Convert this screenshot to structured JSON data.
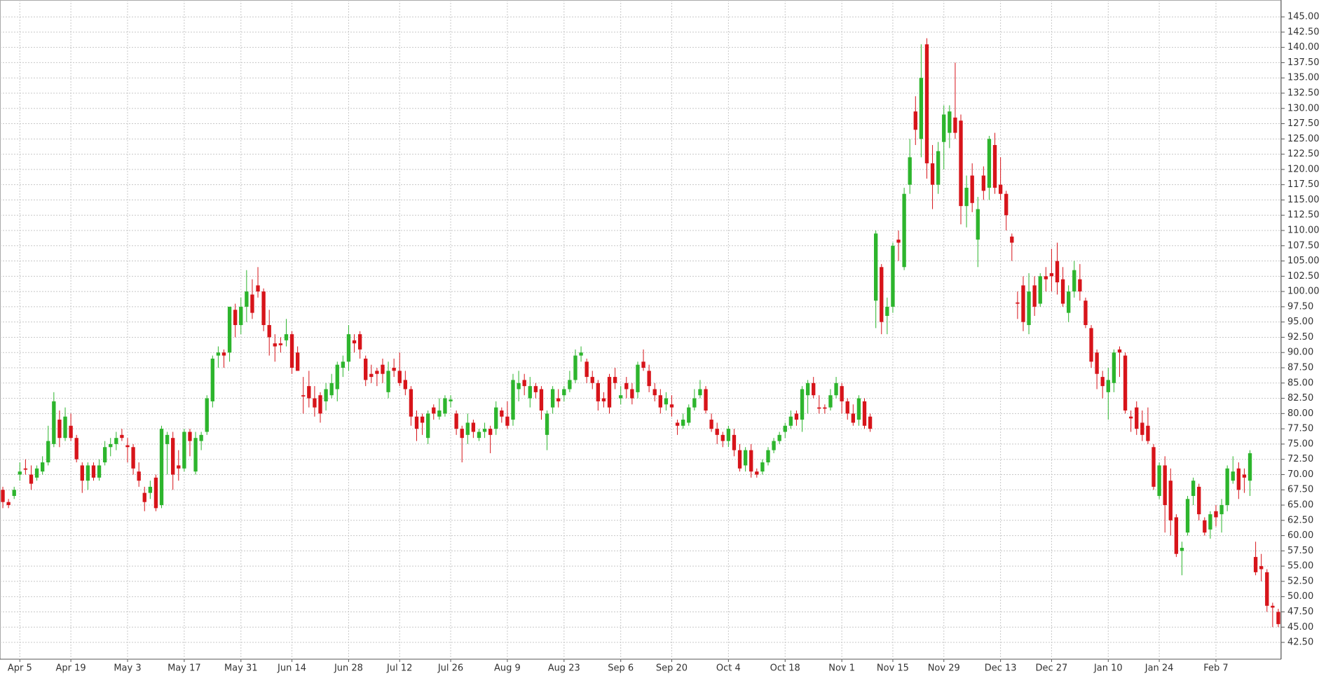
{
  "chart_data": {
    "type": "candlestick",
    "grid": true,
    "up_color": "#2db52d",
    "down_color": "#d7141a",
    "ylim": [
      39.75,
      147.5
    ],
    "yticks": [
      {
        "value": 42.5,
        "label": "42.50"
      },
      {
        "value": 45,
        "label": "45.00"
      },
      {
        "value": 47.5,
        "label": "47.50"
      },
      {
        "value": 50,
        "label": "50.00"
      },
      {
        "value": 52.5,
        "label": "52.50"
      },
      {
        "value": 55,
        "label": "55.00"
      },
      {
        "value": 57.5,
        "label": "57.50"
      },
      {
        "value": 60,
        "label": "60.00"
      },
      {
        "value": 62.5,
        "label": "62.50"
      },
      {
        "value": 65,
        "label": "65.00"
      },
      {
        "value": 67.5,
        "label": "67.50"
      },
      {
        "value": 70,
        "label": "70.00"
      },
      {
        "value": 72.5,
        "label": "72.50"
      },
      {
        "value": 75,
        "label": "75.00"
      },
      {
        "value": 77.5,
        "label": "77.50"
      },
      {
        "value": 80,
        "label": "80.00"
      },
      {
        "value": 82.5,
        "label": "82.50"
      },
      {
        "value": 85,
        "label": "85.00"
      },
      {
        "value": 87.5,
        "label": "87.50"
      },
      {
        "value": 90,
        "label": "90.00"
      },
      {
        "value": 92.5,
        "label": "92.50"
      },
      {
        "value": 95,
        "label": "95.00"
      },
      {
        "value": 97.5,
        "label": "97.50"
      },
      {
        "value": 100,
        "label": "100.00"
      },
      {
        "value": 102.5,
        "label": "102.50"
      },
      {
        "value": 105,
        "label": "105.00"
      },
      {
        "value": 107.5,
        "label": "107.50"
      },
      {
        "value": 110,
        "label": "110.00"
      },
      {
        "value": 112.5,
        "label": "112.50"
      },
      {
        "value": 115,
        "label": "115.00"
      },
      {
        "value": 117.5,
        "label": "117.50"
      },
      {
        "value": 120,
        "label": "120.00"
      },
      {
        "value": 122.5,
        "label": "122.50"
      },
      {
        "value": 125,
        "label": "125.00"
      },
      {
        "value": 127.5,
        "label": "127.50"
      },
      {
        "value": 130,
        "label": "130.00"
      },
      {
        "value": 132.5,
        "label": "132.50"
      },
      {
        "value": 135,
        "label": "135.00"
      },
      {
        "value": 137.5,
        "label": "137.50"
      },
      {
        "value": 140,
        "label": "140.00"
      },
      {
        "value": 142.5,
        "label": "142.50"
      },
      {
        "value": 145,
        "label": "145.00"
      }
    ],
    "categories": [
      null,
      null,
      null,
      "Apr 5",
      null,
      null,
      null,
      null,
      null,
      null,
      null,
      null,
      "Apr 19",
      null,
      null,
      null,
      null,
      null,
      null,
      null,
      null,
      null,
      "May 3",
      null,
      null,
      null,
      null,
      null,
      null,
      null,
      null,
      null,
      "May 17",
      null,
      null,
      null,
      null,
      null,
      null,
      null,
      null,
      null,
      "May 31",
      null,
      null,
      null,
      null,
      null,
      null,
      null,
      null,
      "Jun 14",
      null,
      null,
      null,
      null,
      null,
      null,
      null,
      null,
      null,
      "Jun 28",
      null,
      null,
      null,
      null,
      null,
      null,
      null,
      null,
      "Jul 12",
      null,
      null,
      null,
      null,
      null,
      null,
      null,
      null,
      "Jul 26",
      null,
      null,
      null,
      null,
      null,
      null,
      null,
      null,
      null,
      "Aug 9",
      null,
      null,
      null,
      null,
      null,
      null,
      null,
      null,
      null,
      "Aug 23",
      null,
      null,
      null,
      null,
      null,
      null,
      null,
      null,
      null,
      "Sep 6",
      null,
      null,
      null,
      null,
      null,
      null,
      null,
      null,
      "Sep 20",
      null,
      null,
      null,
      null,
      null,
      null,
      null,
      null,
      null,
      "Oct 4",
      null,
      null,
      null,
      null,
      null,
      null,
      null,
      null,
      null,
      "Oct 18",
      null,
      null,
      null,
      null,
      null,
      null,
      null,
      null,
      null,
      "Nov 1",
      null,
      null,
      null,
      null,
      null,
      null,
      null,
      null,
      "Nov 15",
      null,
      null,
      null,
      null,
      null,
      null,
      null,
      null,
      "Nov 29",
      null,
      null,
      null,
      null,
      null,
      null,
      null,
      null,
      null,
      "Dec 13",
      null,
      null,
      null,
      null,
      null,
      null,
      null,
      null,
      "Dec 27",
      null,
      null,
      null,
      null,
      null,
      null,
      null,
      null,
      null,
      "Jan 10",
      null,
      null,
      null,
      null,
      null,
      null,
      null,
      null,
      "Jan 24",
      null,
      null,
      null,
      null,
      null,
      null,
      null,
      null,
      null,
      "Feb 7",
      null,
      null,
      null,
      null,
      null,
      null,
      null,
      null,
      null,
      null,
      null
    ],
    "open": [
      67.5,
      65.5,
      66.5,
      70,
      71,
      70,
      69.5,
      70.5,
      72,
      75,
      79,
      76,
      78,
      76,
      71.5,
      69,
      71.5,
      69.5,
      72,
      74.5,
      75,
      76.5,
      74.8,
      74.5,
      70.5,
      67,
      67,
      69.5,
      65,
      75,
      76,
      71.5,
      71,
      77,
      70.5,
      75.5,
      77,
      82,
      89.5,
      90,
      90,
      97,
      94.5,
      97.5,
      99.5,
      101,
      100,
      94.5,
      91.5,
      91.5,
      92,
      93,
      90,
      83,
      84.5,
      82.5,
      83,
      82,
      83,
      84,
      87.5,
      88.5,
      92,
      93,
      89,
      86.5,
      87,
      88,
      83.5,
      87.5,
      87,
      85.5,
      84,
      79.5,
      79.5,
      76,
      81,
      79.5,
      80,
      82,
      80,
      77.5,
      76.5,
      78.5,
      76,
      77,
      77.5,
      77.5,
      80.5,
      79.5,
      79,
      84,
      85.5,
      82.5,
      84.5,
      84,
      76.5,
      81,
      82.5,
      83,
      84,
      85.5,
      89.5,
      88.5,
      86,
      85,
      82.5,
      86,
      86,
      82.5,
      85,
      84,
      83.5,
      88.5,
      87,
      84,
      83,
      81.5,
      81.5,
      78.5,
      78,
      78.5,
      81,
      83,
      84,
      79,
      77.5,
      76.5,
      75.5,
      76.5,
      74,
      71.5,
      74,
      70.5,
      70.5,
      72,
      74,
      75.5,
      77,
      78,
      80,
      79,
      83,
      85,
      81,
      81,
      81,
      83,
      84.5,
      82,
      80,
      79,
      82,
      79.5,
      98.5,
      104,
      96,
      97.5,
      108.5,
      104,
      117.5,
      129.5,
      125,
      140.5,
      121,
      117.5,
      124.5,
      126,
      128.5,
      128,
      114,
      119,
      108.5,
      119,
      117,
      124,
      117.5,
      116,
      109,
      98.2,
      101,
      94.5,
      101,
      98,
      102.5,
      103,
      105,
      102,
      96.5,
      100,
      102,
      98.5,
      94,
      90,
      86,
      83.5,
      85,
      90.5,
      89.5,
      79.5,
      81,
      78.5,
      78,
      74.5,
      66.5,
      71.5,
      69,
      63,
      57.5,
      60.5,
      66.5,
      68,
      62.5,
      61,
      64,
      63.5,
      65,
      69,
      71,
      70,
      69,
      56.5,
      55,
      54,
      48.5,
      47.5
    ],
    "high": [
      68,
      66,
      68,
      72,
      72.5,
      71.5,
      71.5,
      73,
      78,
      83.5,
      80.5,
      81,
      80,
      76.5,
      72,
      72,
      72,
      72.5,
      75.5,
      76,
      77,
      77.5,
      76,
      75,
      72,
      68,
      69,
      70,
      78,
      77,
      77,
      74,
      77.5,
      77.5,
      77,
      77,
      83,
      89.5,
      91,
      90.5,
      97.5,
      98,
      99,
      103.5,
      102,
      104,
      100.5,
      97,
      93,
      92.5,
      95.5,
      93.5,
      91,
      86,
      87,
      84.5,
      83.5,
      85,
      86.5,
      88.5,
      89.5,
      94.5,
      93,
      93.5,
      89.5,
      88,
      87.5,
      89,
      88.5,
      89,
      90,
      87,
      84.5,
      80.5,
      80,
      80.5,
      81.5,
      82.5,
      83,
      83,
      80.5,
      78,
      80,
      79,
      77.5,
      78.5,
      78,
      82,
      81,
      82,
      86.5,
      87,
      86.5,
      86,
      85,
      84.5,
      80.5,
      84.5,
      84,
      84.5,
      87,
      90.5,
      91,
      89,
      87,
      85.5,
      83.5,
      86.5,
      87.5,
      84.5,
      86,
      85,
      88.5,
      90.5,
      88,
      85,
      84,
      83.5,
      83,
      79,
      80,
      81.5,
      84,
      85.5,
      84.5,
      80,
      78.5,
      77,
      78,
      77.5,
      75,
      74.5,
      75,
      71,
      72.5,
      74.5,
      76,
      77,
      78.5,
      80.5,
      80.5,
      84.5,
      85.5,
      86,
      83,
      81.5,
      84,
      86,
      85,
      82.5,
      81.5,
      83,
      82.5,
      80,
      110,
      104.5,
      99,
      108,
      110,
      117,
      125,
      132,
      140.5,
      141.5,
      124,
      124.5,
      130.5,
      130.5,
      137.5,
      129,
      119,
      121,
      115.5,
      120.5,
      125.5,
      126,
      122,
      116.5,
      109.5,
      100,
      102.5,
      103,
      102.5,
      103,
      104,
      107,
      108,
      104,
      101,
      105,
      104.5,
      99,
      94.5,
      90.5,
      87,
      87.5,
      90.5,
      91,
      90,
      80.5,
      82,
      80.5,
      81,
      75,
      72,
      73,
      71,
      63.5,
      59,
      66.5,
      69.5,
      68.5,
      63,
      64,
      65,
      66,
      71.5,
      73,
      72,
      71,
      74,
      59,
      57,
      54.5,
      49,
      48
    ],
    "low": [
      64.5,
      64.5,
      66,
      69,
      70,
      67.5,
      69,
      70,
      71.5,
      74.5,
      74.5,
      75.5,
      75.5,
      72,
      67,
      67.5,
      69,
      69,
      71.5,
      73,
      74,
      75.5,
      72,
      70,
      68,
      64,
      66,
      64,
      64.5,
      70,
      67.5,
      69,
      70.5,
      73,
      70,
      74,
      76.5,
      81,
      87.5,
      87.5,
      88.5,
      92.5,
      93,
      95,
      95.5,
      99,
      93.5,
      89.5,
      88.5,
      90,
      91,
      86.5,
      87,
      80,
      81,
      79.5,
      78.5,
      80.5,
      82.5,
      82,
      86,
      87,
      90,
      89,
      84.5,
      85,
      84.5,
      85,
      82.5,
      86,
      84.5,
      83,
      78,
      75.5,
      76.5,
      75,
      79,
      79,
      79.5,
      81,
      76.5,
      72,
      75,
      76,
      75.5,
      76,
      73.5,
      76.5,
      78.5,
      77.5,
      78,
      82,
      83,
      81,
      82.5,
      79,
      74,
      80,
      81,
      82,
      83.5,
      85,
      88.5,
      85,
      84,
      80.5,
      81,
      80,
      84,
      81.5,
      82.5,
      81.5,
      82.5,
      87,
      83.5,
      82,
      80,
      80.5,
      79.5,
      76.5,
      77.5,
      78,
      80.5,
      82.5,
      80,
      77,
      75,
      74.5,
      74.5,
      73,
      70.5,
      70.5,
      69.5,
      69.5,
      70,
      71.5,
      73.5,
      75,
      76,
      77.5,
      78,
      77,
      80,
      82.5,
      80,
      80,
      80.5,
      82.5,
      80,
      79,
      78,
      78,
      77.5,
      77,
      94,
      93,
      93,
      96.5,
      105,
      103.5,
      116,
      124,
      122,
      118.5,
      113.5,
      116,
      120,
      123.5,
      125,
      111,
      110.5,
      113,
      104,
      115,
      115,
      116,
      115,
      110,
      105,
      95.5,
      93.5,
      93,
      96,
      97.5,
      100,
      100,
      99.5,
      97.5,
      95,
      99,
      98.5,
      94,
      87.5,
      84,
      82.5,
      79,
      83.5,
      86,
      80,
      77,
      76.5,
      75.5,
      75,
      67.5,
      66,
      60.5,
      60,
      56.5,
      53.5,
      60,
      65,
      62.5,
      60,
      59.5,
      61.5,
      60.5,
      64,
      68.5,
      66,
      67,
      66.5,
      53.5,
      52.5,
      47.5,
      45,
      45
    ],
    "close": [
      65.5,
      65,
      67.5,
      70.5,
      70.8,
      68.5,
      71,
      72,
      75.5,
      82,
      76,
      79.5,
      76,
      72.5,
      69,
      71.5,
      69.5,
      71.5,
      74.5,
      75,
      76,
      76,
      74.5,
      71,
      69,
      65.5,
      68,
      64.5,
      77.5,
      76.5,
      70,
      71,
      77,
      75.5,
      76,
      76.5,
      82.5,
      89,
      90,
      89.5,
      97.5,
      94.5,
      97.5,
      100,
      96.5,
      100,
      94.5,
      92.5,
      91,
      91.2,
      93,
      87.5,
      87,
      82.8,
      82.5,
      81,
      80,
      84,
      85,
      88,
      88.5,
      93,
      91.5,
      90.5,
      85.5,
      86,
      86.5,
      86.5,
      87,
      87,
      85,
      84,
      79.5,
      77.5,
      78.5,
      80,
      80,
      80.5,
      82.5,
      82.3,
      77.5,
      76,
      78.5,
      77,
      77,
      77.5,
      76.5,
      81,
      79.5,
      78,
      85.5,
      85,
      84.5,
      84.5,
      83.5,
      80.5,
      80,
      84,
      82,
      84,
      85.5,
      89.5,
      90,
      86,
      85,
      82,
      82,
      81,
      85,
      83,
      84,
      82.5,
      88,
      87.5,
      84.5,
      83,
      81,
      82.5,
      81,
      78,
      79,
      81,
      82.5,
      84,
      80.5,
      77.5,
      76.5,
      75.5,
      77.5,
      74,
      71,
      74,
      70.5,
      70,
      72,
      74,
      75.5,
      76.5,
      78,
      79.5,
      79,
      84,
      85,
      83,
      80.8,
      80.8,
      83,
      85,
      82,
      80,
      78.5,
      82.5,
      78,
      77.5,
      109.5,
      95,
      97.5,
      107.5,
      108,
      116,
      122,
      126.5,
      135,
      121,
      117.5,
      123,
      129,
      129.5,
      126,
      114,
      117,
      114.5,
      113.5,
      116.5,
      125,
      117,
      116,
      112.5,
      108,
      98,
      95,
      100,
      97.5,
      102.5,
      102,
      102.5,
      101.5,
      98,
      100,
      103.5,
      100,
      94.5,
      88.5,
      86.5,
      84.5,
      85.5,
      90,
      90,
      80.5,
      79.2,
      77.5,
      76.5,
      75.5,
      68,
      71.5,
      65,
      62.5,
      57,
      58,
      66,
      69,
      63.5,
      60.5,
      63.5,
      63,
      65,
      71,
      70.5,
      67.5,
      69.5,
      73.5,
      54,
      54.5,
      48.5,
      48.2,
      45.5
    ]
  }
}
